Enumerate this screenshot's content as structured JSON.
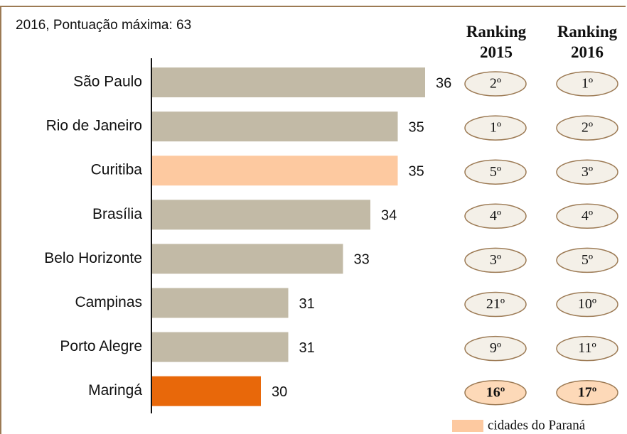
{
  "chart_data": {
    "type": "bar",
    "subtitle": "2016, Pontuação máxima: 63",
    "categories": [
      "São Paulo",
      "Rio de Janeiro",
      "Curitiba",
      "Brasília",
      "Belo Horizonte",
      "Campinas",
      "Porto Alegre",
      "Maringá"
    ],
    "values": [
      36,
      35,
      35,
      34,
      33,
      31,
      31,
      30
    ],
    "colors": [
      "#c2baa6",
      "#c2baa6",
      "#fdc9a0",
      "#c2baa6",
      "#c2baa6",
      "#c2baa6",
      "#c2baa6",
      "#e8680a"
    ],
    "xlim": [
      26,
      36
    ],
    "rankings": [
      {
        "name": "Ranking 2015",
        "values": [
          "2º",
          "1º",
          "5º",
          "4º",
          "3º",
          "21º",
          "9º",
          "16º"
        ]
      },
      {
        "name": "Ranking 2016",
        "values": [
          "1º",
          "2º",
          "3º",
          "4º",
          "5º",
          "10º",
          "11º",
          "17º"
        ]
      }
    ],
    "rank_fills": [
      "#f4f0e8",
      "#f4f0e8",
      "#f4f0e8",
      "#f4f0e8",
      "#f4f0e8",
      "#f4f0e8",
      "#f4f0e8",
      "#fdd9b8"
    ],
    "rank_bold": [
      false,
      false,
      false,
      false,
      false,
      false,
      false,
      true
    ],
    "legend": {
      "label": "cidades do Paraná",
      "color": "#fdc9a0"
    }
  }
}
